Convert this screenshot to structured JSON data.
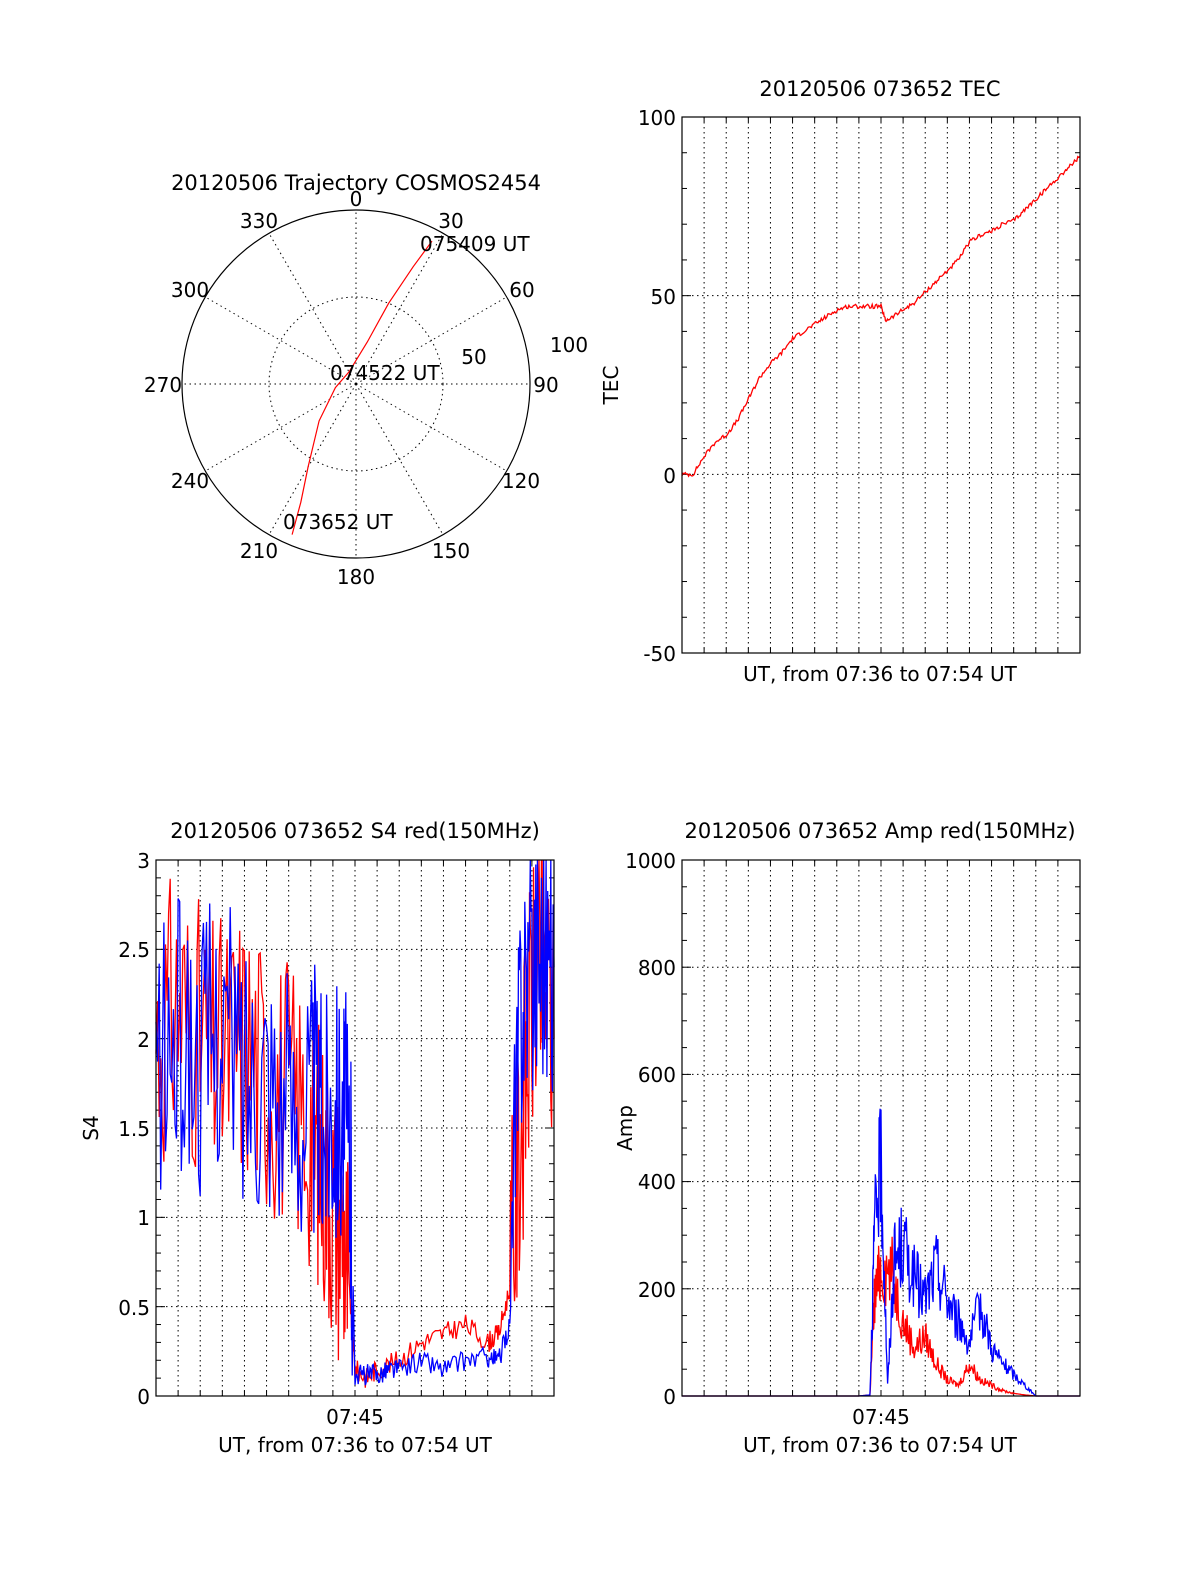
{
  "chart_data": [
    {
      "type": "polar",
      "id": "trajectory",
      "title": "20120506 Trajectory COSMOS2454",
      "angle_labels": [
        "0",
        "30",
        "60",
        "90",
        "120",
        "150",
        "180",
        "210",
        "240",
        "270",
        "300",
        "330"
      ],
      "radius_labels": [
        "50",
        "100"
      ],
      "rlim": [
        0,
        100
      ],
      "series": [
        {
          "color": "#ff0000",
          "points": [
            {
              "az": 203,
              "el_dist": 94
            },
            {
              "az": 205,
              "el_dist": 75
            },
            {
              "az": 210,
              "el_dist": 55
            },
            {
              "az": 225,
              "el_dist": 30
            },
            {
              "az": 260,
              "el_dist": 12
            },
            {
              "az": 330,
              "el_dist": 8
            },
            {
              "az": 15,
              "el_dist": 25
            },
            {
              "az": 22,
              "el_dist": 50
            },
            {
              "az": 26,
              "el_dist": 75
            },
            {
              "az": 28,
              "el_dist": 93
            }
          ]
        }
      ],
      "annotations": [
        "075409 UT",
        "074522 UT",
        "073652 UT"
      ]
    },
    {
      "type": "line",
      "id": "tec",
      "title": "20120506 073652 TEC",
      "ylabel": "TEC",
      "xlabel": "UT, from 07:36 to 07:54 UT",
      "ylim": [
        -50,
        100
      ],
      "yticks": [
        "100",
        "50",
        "0",
        "-50"
      ],
      "grid": true,
      "series": [
        {
          "color": "#ff0000",
          "x": [
            0.0,
            0.5,
            1.0,
            1.5,
            2.0,
            2.5,
            3.0,
            3.5,
            4.0,
            4.5,
            5.0,
            5.5,
            6.0,
            6.5,
            7.0,
            7.5,
            8.0,
            8.5,
            9.0,
            9.2,
            9.5,
            10.0,
            10.5,
            11.0,
            11.5,
            12.0,
            12.5,
            13.0,
            13.5,
            14.0,
            14.5,
            15.0,
            15.5,
            16.0,
            16.5,
            17.0,
            17.5,
            18.0
          ],
          "y": [
            0,
            0,
            5,
            9,
            11,
            15,
            21,
            27,
            31,
            34,
            38,
            40,
            42,
            44,
            46,
            47,
            47,
            47,
            47,
            43,
            44,
            46,
            48,
            51,
            54,
            57,
            60,
            65,
            67,
            68,
            70,
            71,
            74,
            77,
            80,
            83,
            86,
            89
          ]
        }
      ]
    },
    {
      "type": "line",
      "id": "s4",
      "title": "20120506 073652 S4 red(150MHz)",
      "ylabel": "S4",
      "xlabel": "UT, from 07:36 to 07:54 UT",
      "xtick_label": "07:45",
      "ylim": [
        0,
        3
      ],
      "yticks": [
        "3",
        "2.5",
        "2",
        "1.5",
        "1",
        "0.5",
        "0"
      ],
      "grid": true,
      "series": [
        {
          "color": "#ff0000",
          "x": [
            0.0,
            1.0,
            2.0,
            3.0,
            4.0,
            5.0,
            6.0,
            7.0,
            7.5,
            8.0,
            8.5,
            8.8,
            9.0,
            9.5,
            10.0,
            11.0,
            12.0,
            13.0,
            14.0,
            15.0,
            15.5,
            16.0,
            16.5,
            17.0,
            17.5,
            18.0
          ],
          "y": [
            2.0,
            2.2,
            2.0,
            1.9,
            2.0,
            1.8,
            1.7,
            1.5,
            1.3,
            1.1,
            0.9,
            0.5,
            0.15,
            0.1,
            0.15,
            0.2,
            0.3,
            0.35,
            0.4,
            0.3,
            0.35,
            0.6,
            1.5,
            2.2,
            2.4,
            2.0
          ]
        },
        {
          "color": "#0000ff",
          "x": [
            0.0,
            1.0,
            2.0,
            3.0,
            4.0,
            5.0,
            6.0,
            7.0,
            7.5,
            8.0,
            8.5,
            8.8,
            9.0,
            9.5,
            10.0,
            10.5,
            11.0,
            12.0,
            13.0,
            14.0,
            15.0,
            15.5,
            16.0,
            16.5,
            17.0,
            17.5,
            18.0
          ],
          "y": [
            1.8,
            2.0,
            1.9,
            2.1,
            1.8,
            1.9,
            1.6,
            1.7,
            1.5,
            1.7,
            1.6,
            1.2,
            0.12,
            0.12,
            0.12,
            0.15,
            0.15,
            0.2,
            0.15,
            0.2,
            0.22,
            0.2,
            0.4,
            2.3,
            2.5,
            2.6,
            2.4
          ]
        }
      ]
    },
    {
      "type": "line",
      "id": "amp",
      "title": "20120506 073652 Amp red(150MHz)",
      "ylabel": "Amp",
      "xlabel": "UT, from 07:36 to 07:54 UT",
      "xtick_label": "07:45",
      "ylim": [
        0,
        1000
      ],
      "yticks": [
        "1000",
        "800",
        "600",
        "400",
        "200",
        "0"
      ],
      "grid": true,
      "series": [
        {
          "color": "#ff0000",
          "x": [
            0.0,
            4.0,
            8.0,
            8.5,
            8.7,
            9.0,
            9.5,
            10.0,
            10.5,
            11.0,
            11.5,
            12.0,
            12.5,
            13.0,
            13.5,
            14.0,
            14.5,
            15.0,
            15.5,
            16.0,
            18.0
          ],
          "y": [
            0,
            0,
            0,
            2,
            180,
            240,
            230,
            140,
            90,
            110,
            60,
            30,
            20,
            60,
            30,
            20,
            10,
            5,
            2,
            0,
            0
          ]
        },
        {
          "color": "#0000ff",
          "x": [
            0.0,
            4.0,
            8.0,
            8.5,
            8.7,
            9.0,
            9.3,
            9.6,
            10.0,
            10.5,
            11.0,
            11.5,
            12.0,
            12.5,
            13.0,
            13.5,
            14.0,
            14.5,
            15.0,
            15.5,
            16.0,
            18.0
          ],
          "y": [
            0,
            0,
            0,
            2,
            300,
            440,
            20,
            250,
            280,
            220,
            180,
            240,
            180,
            140,
            100,
            170,
            90,
            60,
            40,
            20,
            0,
            0
          ]
        }
      ]
    }
  ]
}
